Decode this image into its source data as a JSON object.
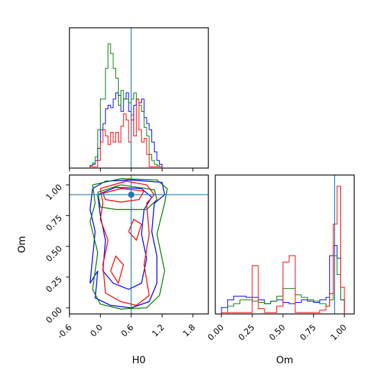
{
  "chart_data": {
    "type": "corner",
    "parameters": [
      "H0",
      "Om"
    ],
    "xlabel_left": "H0",
    "xlabel_right": "Om",
    "ylabel_bottom": "Om",
    "truth": {
      "H0": 0.6,
      "Om": 0.92
    },
    "truth_color": "#1f77b4",
    "series": [
      {
        "color": "#0000ff"
      },
      {
        "color": "#008000"
      },
      {
        "color": "#ff0000"
      }
    ],
    "h0_axis": {
      "range": [
        -0.6,
        2.1
      ],
      "ticks": [
        "-0.6",
        "0.0",
        "0.6",
        "1.2",
        "1.8"
      ],
      "tick_values": [
        -0.6,
        0.0,
        0.6,
        1.2,
        1.8
      ]
    },
    "om_axis": {
      "range": [
        -0.05,
        1.08
      ],
      "ticks": [
        "0.00",
        "0.25",
        "0.50",
        "0.75",
        "1.00"
      ],
      "tick_values": [
        0.0,
        0.25,
        0.5,
        0.75,
        1.0
      ]
    },
    "h0_hist": {
      "bin_edges": [
        -0.2,
        -0.15,
        -0.1,
        -0.05,
        0.0,
        0.05,
        0.1,
        0.15,
        0.2,
        0.25,
        0.3,
        0.35,
        0.4,
        0.45,
        0.5,
        0.55,
        0.6,
        0.65,
        0.7,
        0.75,
        0.8,
        0.85,
        0.9,
        0.95,
        1.0,
        1.05,
        1.1,
        1.15,
        1.2
      ],
      "counts": [
        [
          0.01,
          0.02,
          0.05,
          0.15,
          0.3,
          0.35,
          0.47,
          0.5,
          0.48,
          0.55,
          0.6,
          0.58,
          0.45,
          0.55,
          0.6,
          0.45,
          0.38,
          0.5,
          0.55,
          0.52,
          0.55,
          0.4,
          0.35,
          0.3,
          0.2,
          0.12,
          0.05,
          0.02
        ],
        [
          0.01,
          0.03,
          0.08,
          0.3,
          0.55,
          0.55,
          0.8,
          1.0,
          0.92,
          0.8,
          0.72,
          0.5,
          0.62,
          0.55,
          0.55,
          0.52,
          0.55,
          0.6,
          0.55,
          0.5,
          0.45,
          0.32,
          0.25,
          0.1,
          0.05,
          0.02,
          0.01,
          0.0
        ],
        [
          0.0,
          0.0,
          0.0,
          0.05,
          0.2,
          0.3,
          0.25,
          0.18,
          0.28,
          0.2,
          0.28,
          0.2,
          0.33,
          0.43,
          0.38,
          0.2,
          0.42,
          0.25,
          0.55,
          0.3,
          0.2,
          0.23,
          0.1,
          0.0,
          0.0,
          0.0,
          0.0,
          0.0
        ]
      ]
    },
    "om_hist": {
      "bin_edges": [
        0.0,
        0.05,
        0.1,
        0.15,
        0.2,
        0.25,
        0.3,
        0.35,
        0.4,
        0.45,
        0.5,
        0.55,
        0.6,
        0.65,
        0.7,
        0.75,
        0.8,
        0.85,
        0.88,
        0.91,
        0.94,
        0.97,
        1.0
      ],
      "counts": [
        [
          0.04,
          0.1,
          0.13,
          0.13,
          0.12,
          0.12,
          0.1,
          0.07,
          0.09,
          0.1,
          0.08,
          0.07,
          0.08,
          0.1,
          0.09,
          0.08,
          0.1,
          0.12,
          0.45,
          0.53,
          0.43,
          0.1
        ],
        [
          0.0,
          0.05,
          0.07,
          0.1,
          0.1,
          0.09,
          0.08,
          0.07,
          0.09,
          0.13,
          0.19,
          0.19,
          0.14,
          0.12,
          0.1,
          0.09,
          0.07,
          0.05,
          0.1,
          0.45,
          0.3,
          0.1
        ],
        [
          0.0,
          0.0,
          0.0,
          0.0,
          0.0,
          0.37,
          0.03,
          0.0,
          0.0,
          0.05,
          0.4,
          0.45,
          0.0,
          0.0,
          0.0,
          0.0,
          0.02,
          0.05,
          0.15,
          0.7,
          1.0,
          0.2
        ]
      ]
    },
    "contours": [
      {
        "series": 0,
        "points": [
          [
            -0.15,
            0.97
          ],
          [
            0.1,
            1.03
          ],
          [
            0.6,
            1.04
          ],
          [
            1.2,
            1.02
          ],
          [
            1.25,
            0.92
          ],
          [
            1.05,
            0.85
          ],
          [
            1.0,
            0.62
          ],
          [
            1.1,
            0.42
          ],
          [
            1.1,
            0.2
          ],
          [
            0.95,
            0.05
          ],
          [
            0.6,
            0.0
          ],
          [
            0.2,
            0.02
          ],
          [
            -0.1,
            0.08
          ],
          [
            -0.05,
            0.3
          ],
          [
            -0.2,
            0.2
          ],
          [
            -0.1,
            0.62
          ],
          [
            -0.2,
            0.8
          ],
          [
            -0.15,
            0.97
          ]
        ]
      },
      {
        "series": 0,
        "points": [
          [
            -0.05,
            0.92
          ],
          [
            0.3,
            0.98
          ],
          [
            0.8,
            0.97
          ],
          [
            1.0,
            0.9
          ],
          [
            0.85,
            0.8
          ],
          [
            0.8,
            0.6
          ],
          [
            0.9,
            0.4
          ],
          [
            0.8,
            0.2
          ],
          [
            0.55,
            0.15
          ],
          [
            0.25,
            0.2
          ],
          [
            0.05,
            0.3
          ],
          [
            0.1,
            0.55
          ],
          [
            0.0,
            0.75
          ],
          [
            -0.05,
            0.92
          ]
        ]
      },
      {
        "series": 1,
        "points": [
          [
            -0.15,
            1.0
          ],
          [
            0.4,
            1.05
          ],
          [
            1.1,
            1.04
          ],
          [
            1.3,
            0.97
          ],
          [
            1.25,
            0.85
          ],
          [
            1.1,
            0.6
          ],
          [
            1.25,
            0.3
          ],
          [
            1.15,
            0.1
          ],
          [
            0.9,
            0.0
          ],
          [
            0.4,
            -0.01
          ],
          [
            0.0,
            0.03
          ],
          [
            -0.15,
            0.15
          ],
          [
            -0.05,
            0.45
          ],
          [
            -0.2,
            0.7
          ],
          [
            -0.1,
            0.85
          ],
          [
            -0.15,
            1.0
          ]
        ]
      },
      {
        "series": 1,
        "points": [
          [
            -0.05,
            0.94
          ],
          [
            0.4,
            1.0
          ],
          [
            1.05,
            0.96
          ],
          [
            1.1,
            0.88
          ],
          [
            0.9,
            0.8
          ],
          [
            0.3,
            0.8
          ],
          [
            0.0,
            0.82
          ],
          [
            -0.05,
            0.94
          ]
        ]
      },
      {
        "series": 2,
        "points": [
          [
            0.0,
            0.97
          ],
          [
            0.5,
            1.03
          ],
          [
            0.9,
            1.0
          ],
          [
            1.05,
            0.92
          ],
          [
            0.9,
            0.85
          ],
          [
            0.95,
            0.6
          ],
          [
            0.85,
            0.35
          ],
          [
            0.95,
            0.1
          ],
          [
            0.7,
            0.02
          ],
          [
            0.4,
            0.05
          ],
          [
            0.1,
            0.12
          ],
          [
            0.05,
            0.35
          ],
          [
            0.15,
            0.55
          ],
          [
            0.0,
            0.72
          ],
          [
            0.05,
            0.85
          ],
          [
            0.0,
            0.97
          ]
        ]
      },
      {
        "series": 2,
        "points": [
          [
            0.05,
            0.93
          ],
          [
            0.4,
            0.97
          ],
          [
            0.85,
            0.95
          ],
          [
            0.75,
            0.88
          ],
          [
            0.4,
            0.86
          ],
          [
            0.1,
            0.88
          ],
          [
            0.05,
            0.93
          ]
        ]
      },
      {
        "series": 2,
        "points": [
          [
            0.2,
            0.3
          ],
          [
            0.35,
            0.2
          ],
          [
            0.45,
            0.35
          ],
          [
            0.3,
            0.42
          ],
          [
            0.2,
            0.3
          ]
        ]
      },
      {
        "series": 2,
        "points": [
          [
            0.55,
            0.62
          ],
          [
            0.7,
            0.55
          ],
          [
            0.8,
            0.68
          ],
          [
            0.65,
            0.72
          ],
          [
            0.55,
            0.62
          ]
        ]
      }
    ]
  }
}
